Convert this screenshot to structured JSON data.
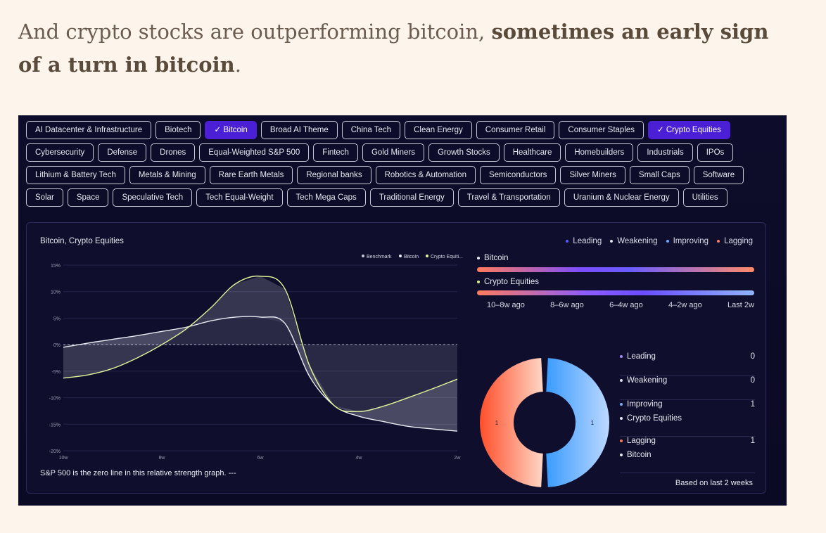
{
  "headline": {
    "normal": "And crypto stocks are outperforming bitcoin, ",
    "bold": "sometimes an early sign of a turn in bitcoin",
    "end": "."
  },
  "chips": [
    {
      "label": "AI Datacenter & Infrastructure",
      "active": false
    },
    {
      "label": "Biotech",
      "active": false
    },
    {
      "label": "✓ Bitcoin",
      "active": true
    },
    {
      "label": "Broad AI Theme",
      "active": false
    },
    {
      "label": "China Tech",
      "active": false
    },
    {
      "label": "Clean Energy",
      "active": false
    },
    {
      "label": "Consumer Retail",
      "active": false
    },
    {
      "label": "Consumer Staples",
      "active": false
    },
    {
      "label": "✓ Crypto Equities",
      "active": true
    },
    {
      "label": "Cybersecurity",
      "active": false
    },
    {
      "label": "Defense",
      "active": false
    },
    {
      "label": "Drones",
      "active": false
    },
    {
      "label": "Equal-Weighted S&P 500",
      "active": false
    },
    {
      "label": "Fintech",
      "active": false
    },
    {
      "label": "Gold Miners",
      "active": false
    },
    {
      "label": "Growth Stocks",
      "active": false
    },
    {
      "label": "Healthcare",
      "active": false
    },
    {
      "label": "Homebuilders",
      "active": false
    },
    {
      "label": "Industrials",
      "active": false
    },
    {
      "label": "IPOs",
      "active": false
    },
    {
      "label": "Lithium & Battery Tech",
      "active": false
    },
    {
      "label": "Metals & Mining",
      "active": false
    },
    {
      "label": "Rare Earth Metals",
      "active": false
    },
    {
      "label": "Regional banks",
      "active": false
    },
    {
      "label": "Robotics & Automation",
      "active": false
    },
    {
      "label": "Semiconductors",
      "active": false
    },
    {
      "label": "Silver Miners",
      "active": false
    },
    {
      "label": "Small Caps",
      "active": false
    },
    {
      "label": "Software",
      "active": false
    },
    {
      "label": "Solar",
      "active": false
    },
    {
      "label": "Space",
      "active": false
    },
    {
      "label": "Speculative Tech",
      "active": false
    },
    {
      "label": "Tech Equal-Weight",
      "active": false
    },
    {
      "label": "Tech Mega Caps",
      "active": false
    },
    {
      "label": "Traditional Energy",
      "active": false
    },
    {
      "label": "Travel & Transportation",
      "active": false
    },
    {
      "label": "Uranium & Nuclear Energy",
      "active": false
    },
    {
      "label": "Utilities",
      "active": false
    }
  ],
  "card": {
    "title": "Bitcoin, Crypto Equities",
    "footnote": "S&P 500 is the zero line in this relative strength graph.  ---",
    "quadrant_legend": [
      {
        "label": "Leading",
        "color": "#5b5bff"
      },
      {
        "label": "Weakening",
        "color": "#e0e0ea"
      },
      {
        "label": "Improving",
        "color": "#6fa8ff"
      },
      {
        "label": "Lagging",
        "color": "#ff7a5c"
      }
    ],
    "timeline": {
      "rows": [
        {
          "name": "Bitcoin",
          "dot": "#e9e9f2"
        },
        {
          "name": "Crypto Equities",
          "dot": "#d9f08a"
        }
      ],
      "labels": [
        "10–8w ago",
        "8–6w ago",
        "6–4w ago",
        "4–2w ago",
        "Last 2w"
      ]
    },
    "quadrant_counts": [
      {
        "label": "Leading",
        "count": "0",
        "color": "#a58bff",
        "members": []
      },
      {
        "label": "Weakening",
        "count": "0",
        "color": "#e0e0ea",
        "members": []
      },
      {
        "label": "Improving",
        "count": "1",
        "color": "#6fb0ff",
        "members": [
          "Crypto Equities"
        ]
      },
      {
        "label": "Lagging",
        "count": "1",
        "color": "#ff7a5c",
        "members": [
          "Bitcoin"
        ]
      }
    ],
    "based_on": "Based on last 2 weeks"
  },
  "chart_data": [
    {
      "type": "line",
      "title": "Bitcoin, Crypto Equities",
      "legend": [
        "Benchmark",
        "Bitcoin",
        "Crypto Equiti..."
      ],
      "legend_position": "top-right",
      "x_ticks": [
        "10w",
        "8w",
        "6w",
        "4w",
        "2w"
      ],
      "y_ticks": [
        "15%",
        "10%",
        "5%",
        "0%",
        "-5%",
        "-10%",
        "-15%",
        "-20%"
      ],
      "ylim": [
        -20,
        15
      ],
      "x": [
        10,
        9.5,
        9,
        8.5,
        8,
        7.5,
        7,
        6.5,
        6,
        5.5,
        5,
        4.5,
        4,
        3.5,
        3,
        2.5,
        2
      ],
      "series": [
        {
          "name": "Benchmark",
          "values": [
            0,
            0,
            0,
            0,
            0,
            0,
            0,
            0,
            0,
            0,
            0,
            0,
            0,
            0,
            0,
            0,
            0
          ],
          "color": "#b9b9c9",
          "dashed": true
        },
        {
          "name": "Bitcoin",
          "values": [
            -0.5,
            0.3,
            1,
            1.7,
            2.5,
            3.3,
            4.5,
            5.2,
            5.2,
            4,
            -6,
            -11.5,
            -13.5,
            -14.5,
            -15.4,
            -15.9,
            -16.3
          ],
          "color": "#ececf4"
        },
        {
          "name": "Crypto Equiti...",
          "values": [
            -6.3,
            -5.7,
            -4.5,
            -2.5,
            0,
            3,
            7,
            11.5,
            12.9,
            10.5,
            -4,
            -11.5,
            -12.6,
            -11.6,
            -10,
            -8.3,
            -6.5
          ],
          "color": "#e2f59a"
        }
      ]
    },
    {
      "type": "pie",
      "categories": [
        "Lagging",
        "Improving"
      ],
      "values": [
        1,
        1
      ],
      "colors": [
        "#ff5a36",
        "#4aa3ff"
      ]
    }
  ]
}
